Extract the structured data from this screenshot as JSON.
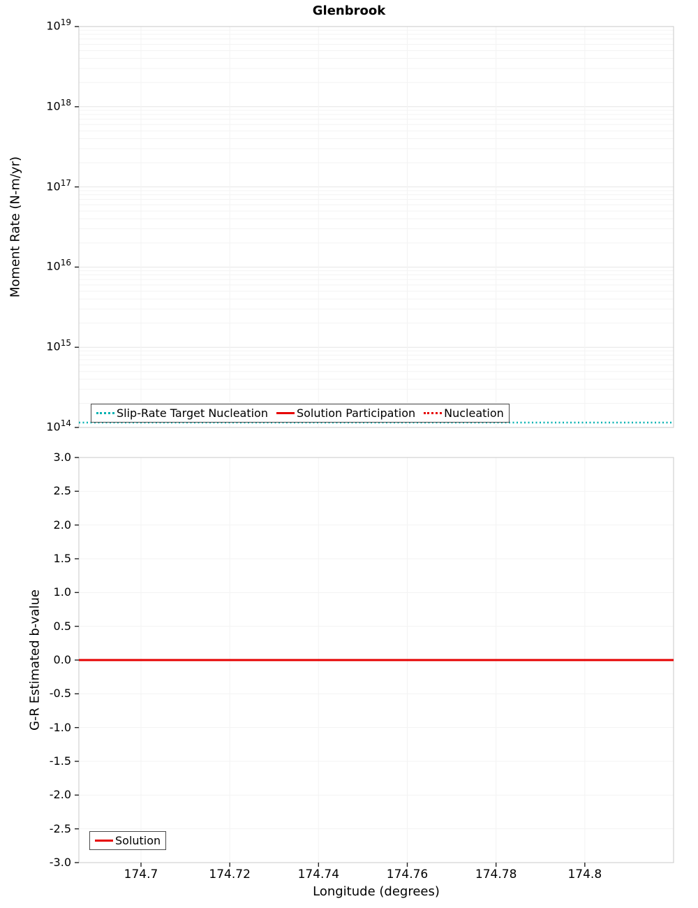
{
  "figure": {
    "title": "Glenbrook"
  },
  "colors": {
    "teal": "#00b2b2",
    "red": "#e60000",
    "grid_major": "#e6e6e6",
    "grid_minor": "#f3f3f3",
    "axis_frame": "#c9c9c9",
    "tick": "#222222",
    "legend_border": "#4a4a4a"
  },
  "chart_data": [
    {
      "type": "line",
      "title": "Glenbrook",
      "ylabel": "Moment Rate (N-m/yr)",
      "yscale": "log",
      "ylim_exponents": [
        14,
        19
      ],
      "ytick_exponents": [
        14,
        15,
        16,
        17,
        18,
        19
      ],
      "xlim": [
        174.686,
        174.82
      ],
      "grid": true,
      "legend_position": "lower-left",
      "series": [
        {
          "name": "Slip-Rate Target Nucleation",
          "color": "#00b2b2",
          "style": "dotted",
          "shape": "hline",
          "value": 115000000000000.0
        },
        {
          "name": "Solution Participation",
          "color": "#e60000",
          "style": "solid",
          "shape": "hline",
          "value": null
        },
        {
          "name": "Nucleation",
          "color": "#e60000",
          "style": "dotted",
          "shape": "hline",
          "value": null
        }
      ]
    },
    {
      "type": "line",
      "ylabel": "G-R Estimated b-value",
      "xlabel": "Longitude (degrees)",
      "yscale": "linear",
      "ylim": [
        -3.0,
        3.0
      ],
      "ytick_labels": [
        "3.0",
        "2.5",
        "2.0",
        "1.5",
        "1.0",
        "0.5",
        "0.0",
        "-0.5",
        "-1.0",
        "-1.5",
        "-2.0",
        "-2.5",
        "-3.0"
      ],
      "xlim": [
        174.686,
        174.82
      ],
      "xticks": [
        "174.7",
        "174.72",
        "174.74",
        "174.76",
        "174.78",
        "174.8"
      ],
      "grid": true,
      "legend_position": "lower-left",
      "series": [
        {
          "name": "Solution",
          "color": "#e60000",
          "style": "solid",
          "shape": "hline",
          "value": 0.0
        }
      ]
    }
  ]
}
